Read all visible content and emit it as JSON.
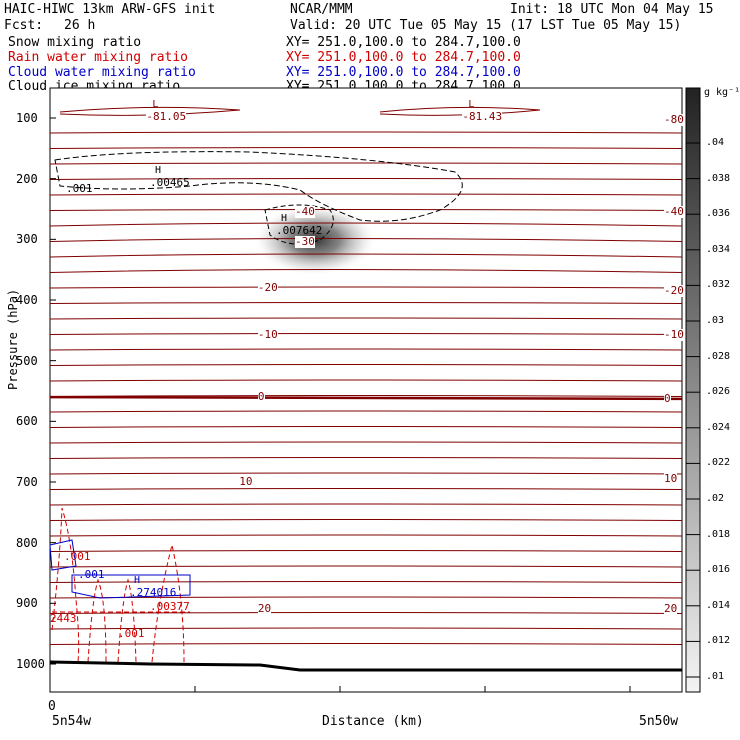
{
  "header": {
    "title": "HAIC-HIWC 13km ARW-GFS init",
    "org": "NCAR/MMM",
    "init": "Init: 18 UTC Mon 04 May 15",
    "fcst_label": "Fcst:",
    "fcst_value": "26 h",
    "valid": "Valid: 20 UTC Tue 05 May 15 (17 LST Tue 05 May 15)"
  },
  "fields": [
    {
      "name": "Snow mixing ratio",
      "xy": "XY= 251.0,100.0 to 284.7,100.0",
      "color": "#000000"
    },
    {
      "name": "Rain water mixing ratio",
      "xy": "XY= 251.0,100.0 to 284.7,100.0",
      "color": "#d00000"
    },
    {
      "name": "Cloud water mixing ratio",
      "xy": "XY= 251.0,100.0 to 284.7,100.0",
      "color": "#0000c8"
    },
    {
      "name": "Cloud ice mixing ratio",
      "xy": "XY= 251.0,100.0 to 284.7,100.0",
      "color": "#000000"
    }
  ],
  "chart_data": {
    "type": "heatmap",
    "ylabel": "Pressure (hPa)",
    "xlabel": "Distance (km)",
    "y_ticks": [
      "100",
      "200",
      "300",
      "400",
      "500",
      "600",
      "700",
      "800",
      "900",
      "1000"
    ],
    "x_ticks": [
      "0"
    ],
    "x_end_labels": [
      "5n54w",
      "5n50w"
    ],
    "colorbar": {
      "units": "g kg⁻¹",
      "ticks": [
        ".04",
        ".038",
        ".036",
        ".034",
        ".032",
        ".03",
        ".028",
        ".026",
        ".024",
        ".022",
        ".02",
        ".018",
        ".016",
        ".014",
        ".012",
        ".01"
      ]
    },
    "temperature_contour_labels": [
      {
        "text": "-81.05",
        "extremum": "L",
        "x_km": 4,
        "p_hpa": 98
      },
      {
        "text": "-81.43",
        "extremum": "L",
        "x_km": 21,
        "p_hpa": 98
      },
      {
        "text": "-80",
        "x_km": 33,
        "p_hpa": 103
      },
      {
        "text": "-40",
        "x_km": 12,
        "p_hpa": 255
      },
      {
        "text": "-40",
        "x_km": 33,
        "p_hpa": 255
      },
      {
        "text": "-30",
        "x_km": 12,
        "p_hpa": 305
      },
      {
        "text": "-20",
        "x_km": 10,
        "p_hpa": 380
      },
      {
        "text": "-20",
        "x_km": 33,
        "p_hpa": 385
      },
      {
        "text": "-10",
        "x_km": 10,
        "p_hpa": 458
      },
      {
        "text": "-10",
        "x_km": 33,
        "p_hpa": 458
      },
      {
        "text": "0",
        "x_km": 10,
        "p_hpa": 560
      },
      {
        "text": "0",
        "x_km": 33,
        "p_hpa": 563
      },
      {
        "text": "10",
        "x_km": 9,
        "p_hpa": 700
      },
      {
        "text": "10",
        "x_km": 33,
        "p_hpa": 695
      },
      {
        "text": "20",
        "x_km": 10,
        "p_hpa": 910
      },
      {
        "text": "20",
        "x_km": 33,
        "p_hpa": 910
      }
    ],
    "extrema": [
      {
        "field": "Snow mixing ratio",
        "label": "H",
        "value": ".00465"
      },
      {
        "field": "Snow mixing ratio",
        "value": ".001"
      },
      {
        "field": "Cloud ice mixing ratio",
        "label": "H",
        "value": ".007642"
      },
      {
        "field": "Cloud water mixing ratio",
        "value": ".001"
      },
      {
        "field": "Cloud water mixing ratio",
        "label": "H",
        "value": ".274016"
      },
      {
        "field": "Rain water mixing ratio",
        "value": ".001"
      },
      {
        "field": "Rain water mixing ratio",
        "value": ".001"
      },
      {
        "field": "Rain water mixing ratio",
        "value": ".00377"
      },
      {
        "field": "Rain water mixing ratio",
        "value": "2443"
      }
    ]
  }
}
